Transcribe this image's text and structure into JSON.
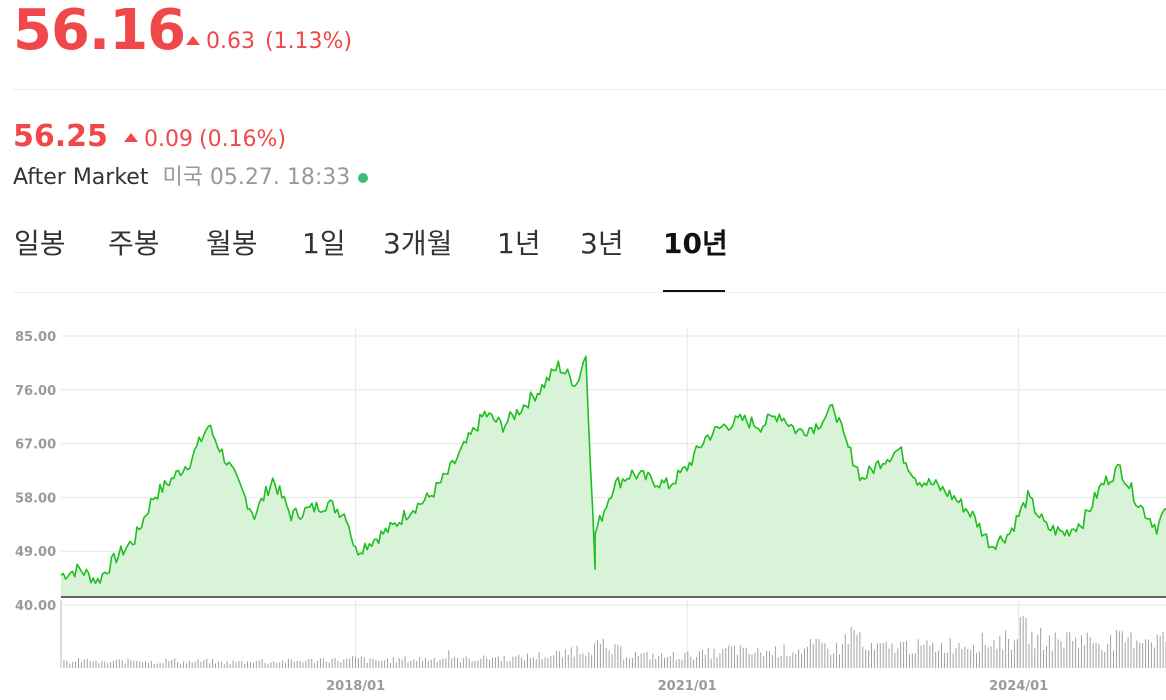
{
  "quote": {
    "price": "56.16",
    "change": "0.63",
    "change_pct": "(1.13%)"
  },
  "after_market": {
    "price": "56.25",
    "change": "0.09",
    "change_pct": "(0.16%)",
    "label": "After Market",
    "meta": "미국 05.27. 18:33"
  },
  "tabs": [
    {
      "label": "일봉",
      "active": false
    },
    {
      "label": "주봉",
      "active": false
    },
    {
      "label": "월봉",
      "active": false
    },
    {
      "label": "1일",
      "active": false
    },
    {
      "label": "3개월",
      "active": false
    },
    {
      "label": "1년",
      "active": false
    },
    {
      "label": "3년",
      "active": false
    },
    {
      "label": "10년",
      "active": true
    }
  ],
  "colors": {
    "up": "#f0474b",
    "line": "#1fbf1f",
    "area": "#d9f3d9",
    "grid": "#e6e6e6",
    "volume": "#a0a0a0",
    "live_dot": "#3dbd6f"
  },
  "chart_data": {
    "type": "area",
    "x_ticks": [
      "2018/01",
      "2021/01",
      "2024/01"
    ],
    "y_ticks": [
      "40.00",
      "49.00",
      "58.00",
      "67.00",
      "76.00",
      "85.00"
    ],
    "ylim": [
      40,
      85
    ],
    "xlim": [
      "2015/05",
      "2025/05"
    ],
    "grid": true,
    "price_series": {
      "x": [
        "2015/05",
        "2015/07",
        "2015/09",
        "2015/11",
        "2016/01",
        "2016/03",
        "2016/05",
        "2016/07",
        "2016/09",
        "2016/11",
        "2017/01",
        "2017/02",
        "2017/04",
        "2017/06",
        "2017/08",
        "2017/10",
        "2017/12",
        "2018/01",
        "2018/03",
        "2018/05",
        "2018/07",
        "2018/09",
        "2018/11",
        "2019/01",
        "2019/03",
        "2019/05",
        "2019/07",
        "2019/09",
        "2019/11",
        "2020/01",
        "2020/02",
        "2020/03",
        "2020/03",
        "2020/05",
        "2020/07",
        "2020/09",
        "2020/11",
        "2021/01",
        "2021/03",
        "2021/05",
        "2021/07",
        "2021/09",
        "2021/11",
        "2022/01",
        "2022/03",
        "2022/05",
        "2022/06",
        "2022/08",
        "2022/10",
        "2022/12",
        "2023/02",
        "2023/04",
        "2023/06",
        "2023/08",
        "2023/10",
        "2023/12",
        "2024/02",
        "2024/04",
        "2024/06",
        "2024/08",
        "2024/10",
        "2024/12",
        "2025/02",
        "2025/04",
        "2025/05"
      ],
      "values": [
        45,
        46,
        44,
        48,
        51,
        58,
        61,
        64,
        70,
        64,
        58,
        55,
        61,
        55,
        56,
        57,
        55,
        49,
        51,
        53,
        56,
        58,
        62,
        67,
        72,
        70,
        73,
        76,
        80,
        77,
        82,
        46,
        52,
        60,
        62,
        61,
        60,
        63,
        68,
        70,
        71,
        70,
        72,
        69,
        70,
        73,
        68,
        61,
        64,
        66,
        61,
        60,
        58,
        55,
        50,
        52,
        58,
        53,
        52,
        54,
        60,
        63,
        57,
        53,
        56.16
      ]
    },
    "volume_series": {
      "relative_values": [
        0.1,
        0.12,
        0.09,
        0.11,
        0.13,
        0.1,
        0.12,
        0.1,
        0.11,
        0.09,
        0.1,
        0.12,
        0.1,
        0.11,
        0.12,
        0.14,
        0.13,
        0.15,
        0.12,
        0.13,
        0.14,
        0.15,
        0.16,
        0.14,
        0.15,
        0.17,
        0.16,
        0.18,
        0.2,
        0.22,
        0.3,
        0.35,
        0.28,
        0.22,
        0.2,
        0.19,
        0.2,
        0.22,
        0.24,
        0.3,
        0.25,
        0.26,
        0.28,
        0.3,
        0.35,
        0.32,
        0.55,
        0.3,
        0.33,
        0.36,
        0.34,
        0.35,
        0.38,
        0.4,
        0.42,
        0.45,
        0.62,
        0.48,
        0.44,
        0.5,
        0.46,
        0.42,
        0.45,
        0.5,
        0.48
      ]
    }
  }
}
